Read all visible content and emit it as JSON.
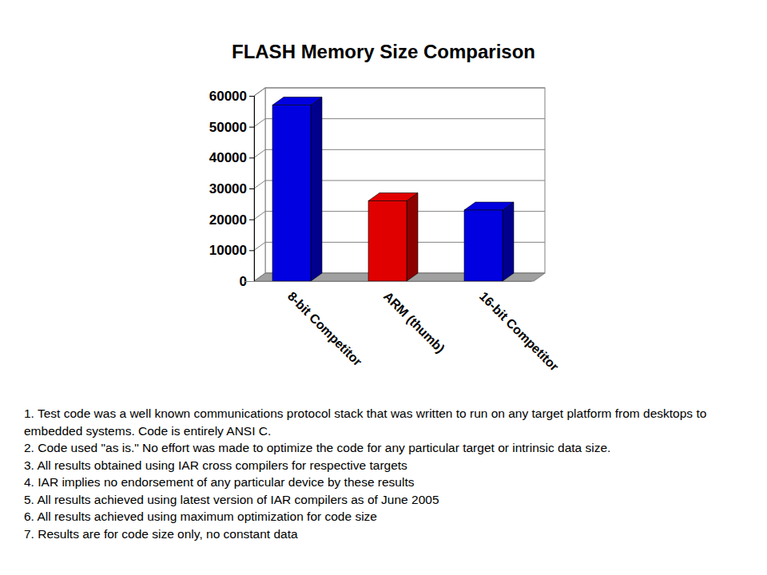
{
  "chart_data": {
    "type": "bar",
    "title": "FLASH Memory Size Comparison",
    "categories": [
      "8-bit Competitor",
      "ARM (thumb)",
      "16-bit Competitor"
    ],
    "values": [
      57000,
      26000,
      23000
    ],
    "colors": [
      "#0000e0",
      "#e00000",
      "#0000e0"
    ],
    "ylim": [
      0,
      60000
    ],
    "yticks": [
      0,
      10000,
      20000,
      30000,
      40000,
      50000,
      60000
    ],
    "grid": true,
    "annotations": [
      "1. Test code was a well known communications protocol stack that was written to run on any target platform from desktops to embedded systems. Code is entirely ANSI C.",
      "2. Code used \"as is.\" No effort was made to optimize the code for any particular target or intrinsic data size.",
      "3. All results obtained using IAR cross compilers for respective targets",
      "4. IAR implies no endorsement of any particular device by these results",
      "5. All results achieved using latest version of IAR compilers as of June 2005",
      "6. All results achieved using maximum optimization for code size",
      "7. Results are for code size only, no constant data"
    ]
  }
}
